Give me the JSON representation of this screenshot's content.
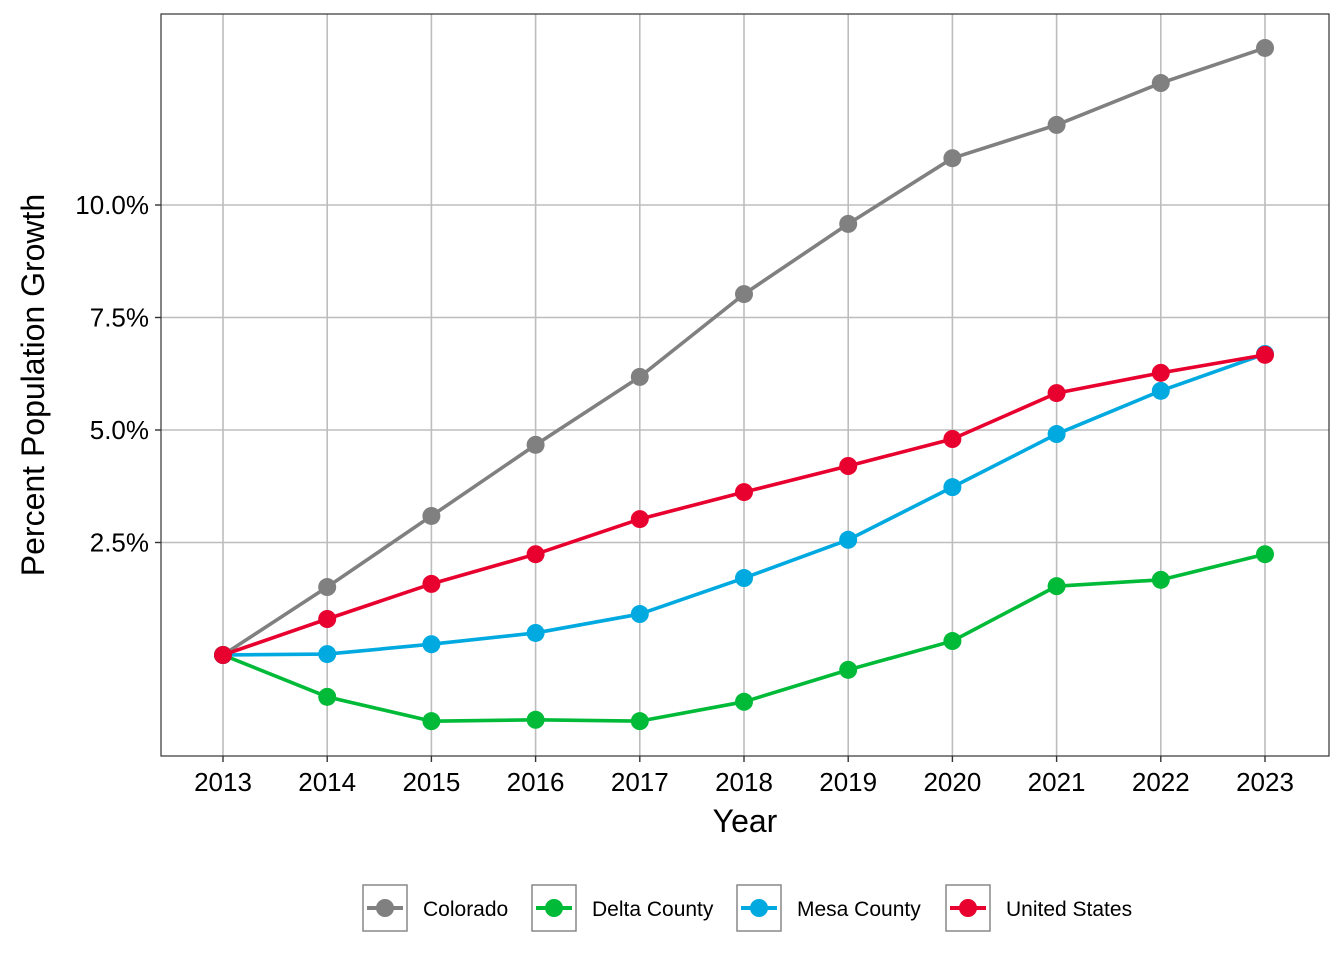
{
  "chart_data": {
    "type": "line",
    "title": "",
    "xlabel": "Year",
    "ylabel": "Percent Population Growth",
    "x": [
      2013,
      2014,
      2015,
      2016,
      2017,
      2018,
      2019,
      2020,
      2021,
      2022,
      2023
    ],
    "x_tick_labels": [
      "2013",
      "2014",
      "2015",
      "2016",
      "2017",
      "2018",
      "2019",
      "2020",
      "2021",
      "2022",
      "2023"
    ],
    "y_ticks": [
      2.5,
      5.0,
      7.5,
      10.0
    ],
    "y_tick_labels": [
      "2.5%",
      "5.0%",
      "7.5%",
      "10.0%"
    ],
    "ylim": [
      -2.25,
      14.1
    ],
    "grid": true,
    "legend_position": "bottom",
    "series": [
      {
        "name": "Colorado",
        "color": "#808080",
        "values": [
          0,
          1.51,
          3.09,
          4.67,
          6.18,
          8.02,
          9.58,
          11.04,
          11.78,
          12.71,
          13.49
        ]
      },
      {
        "name": "Delta County",
        "color": "#00BA38",
        "values": [
          0,
          -0.93,
          -1.47,
          -1.44,
          -1.47,
          -1.04,
          -0.33,
          0.31,
          1.53,
          1.67,
          2.24
        ]
      },
      {
        "name": "Mesa County",
        "color": "#00A9E0",
        "values": [
          0,
          0.02,
          0.24,
          0.49,
          0.91,
          1.71,
          2.56,
          3.73,
          4.91,
          5.87,
          6.69
        ]
      },
      {
        "name": "United States",
        "color": "#E8002E",
        "values": [
          0,
          0.8,
          1.58,
          2.24,
          3.02,
          3.62,
          4.2,
          4.8,
          5.82,
          6.27,
          6.67
        ]
      }
    ]
  }
}
